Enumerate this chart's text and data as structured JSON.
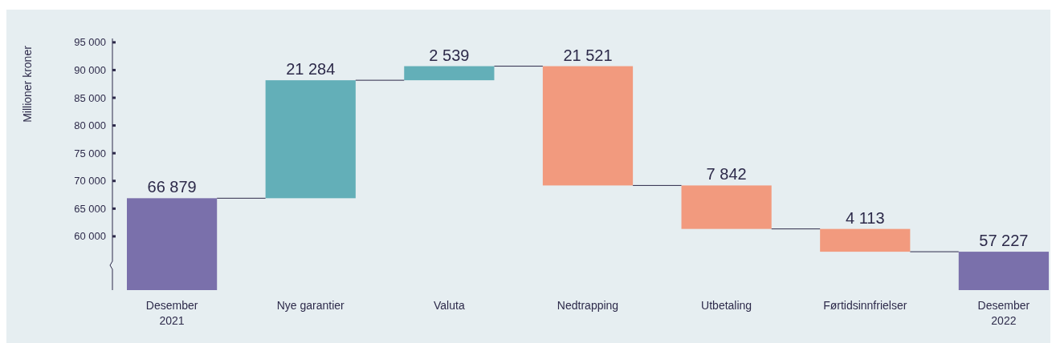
{
  "chart_data": {
    "type": "bar",
    "ylabel": "Millioner kroner",
    "categories": [
      "Desember\n2021",
      "Nye garantier",
      "Valuta",
      "Nedtrapping",
      "Utbetaling",
      "Førtidsinnfrielser",
      "Desember\n2022"
    ],
    "values": [
      66879,
      21284,
      2539,
      -21521,
      -7842,
      -4113,
      57227
    ],
    "base": [
      null,
      66879,
      88163,
      90702,
      69181,
      61339,
      null
    ],
    "colors": [
      "#7a70ab",
      "#63afb8",
      "#63afb8",
      "#f29a7e",
      "#f29a7e",
      "#f29a7e",
      "#7a70ab"
    ],
    "value_labels": [
      "66 879",
      "21 284",
      "2 539",
      "21 521",
      "7 842",
      "4 113",
      "57 227"
    ],
    "ylim": [
      50300,
      95700
    ],
    "yticks": [
      {
        "value": 60000,
        "label": "60 000"
      },
      {
        "value": 65000,
        "label": "65 000"
      },
      {
        "value": 70000,
        "label": "70 000"
      },
      {
        "value": 75000,
        "label": "75 000"
      },
      {
        "value": 80000,
        "label": "80 000"
      },
      {
        "value": 85000,
        "label": "85 000"
      },
      {
        "value": 90000,
        "label": "90 000"
      },
      {
        "value": 95000,
        "label": "95 000"
      }
    ]
  }
}
